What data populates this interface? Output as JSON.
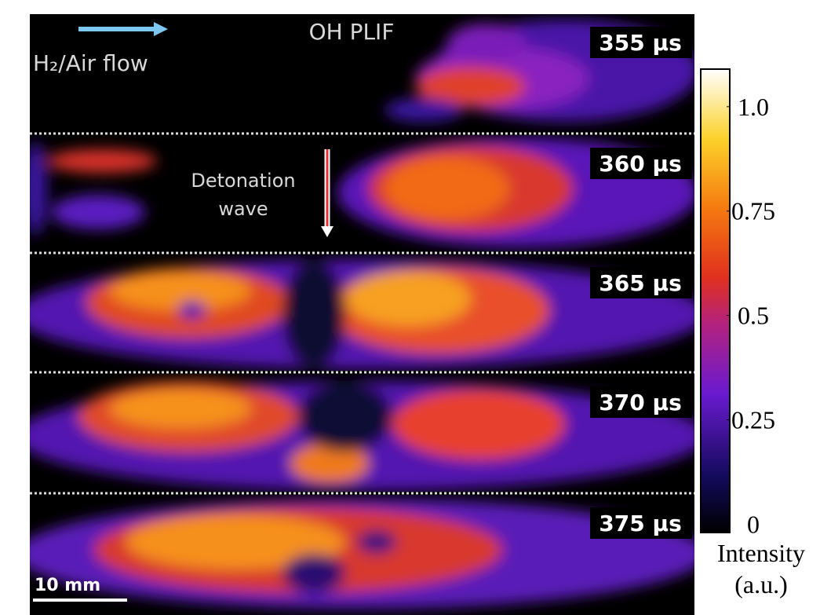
{
  "figure": {
    "title": "OH PLIF",
    "flow_label": "H₂/Air flow",
    "wave_label": [
      "Detonation",
      "wave"
    ],
    "scale_bar": "10 mm",
    "panels": [
      {
        "time": "355 µs"
      },
      {
        "time": "360 µs"
      },
      {
        "time": "365 µs"
      },
      {
        "time": "370 µs"
      },
      {
        "time": "375 µs"
      }
    ],
    "colorbar": {
      "lim": [
        -0.02,
        1.09
      ],
      "ticks": [
        {
          "value": 1,
          "label": "1.0"
        },
        0.75,
        0.5,
        0.25,
        0
      ],
      "label": [
        "Intensity",
        "(a.u.)"
      ]
    }
  }
}
